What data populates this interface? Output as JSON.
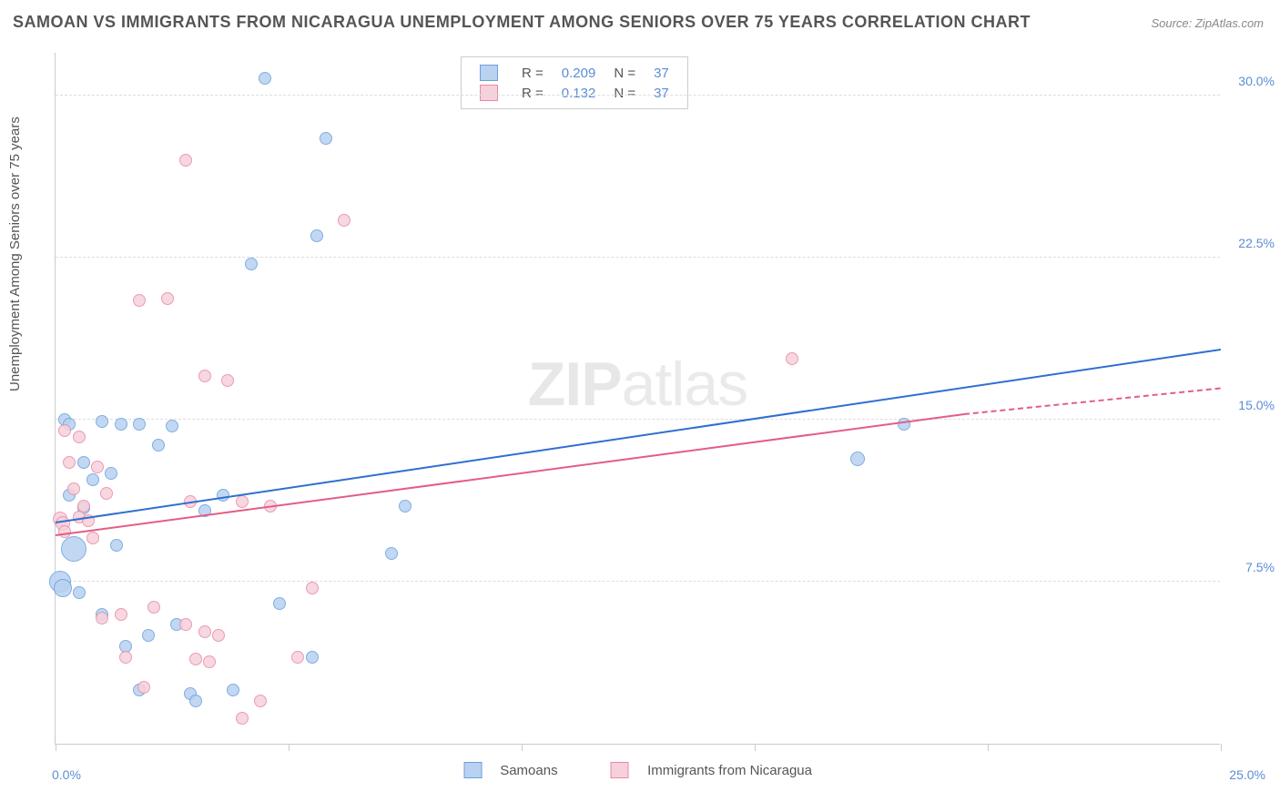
{
  "title": "SAMOAN VS IMMIGRANTS FROM NICARAGUA UNEMPLOYMENT AMONG SENIORS OVER 75 YEARS CORRELATION CHART",
  "source": "Source: ZipAtlas.com",
  "y_axis_label": "Unemployment Among Seniors over 75 years",
  "watermark_a": "ZIP",
  "watermark_b": "atlas",
  "chart": {
    "type": "scatter",
    "x_min": 0,
    "x_max": 25,
    "y_min": 0,
    "y_max": 32,
    "y_ticks": [
      7.5,
      15.0,
      22.5,
      30.0
    ],
    "y_tick_labels": [
      "7.5%",
      "15.0%",
      "22.5%",
      "30.0%"
    ],
    "x_ticks": [
      0,
      5,
      10,
      15,
      20,
      25
    ],
    "x_tick_label_left": "0.0%",
    "x_tick_label_right": "25.0%",
    "background_color": "#ffffff",
    "grid_color": "#dddddd",
    "axis_color": "#cccccc",
    "tick_label_color": "#5b8dd6"
  },
  "series": [
    {
      "name": "Samoans",
      "fill": "#b8d2f0",
      "stroke": "#6a9fe0",
      "trend_color": "#2f6fd0",
      "trend": {
        "x1": 0,
        "y1": 10.2,
        "x2": 25,
        "y2": 18.2
      },
      "r_label": "R =",
      "r_value": "0.209",
      "n_label": "N =",
      "n_value": "37",
      "points": [
        {
          "x": 0.2,
          "y": 15.0,
          "r": 7
        },
        {
          "x": 0.3,
          "y": 14.8,
          "r": 7
        },
        {
          "x": 0.3,
          "y": 11.5,
          "r": 7
        },
        {
          "x": 0.4,
          "y": 9.0,
          "r": 14
        },
        {
          "x": 0.5,
          "y": 7.0,
          "r": 7
        },
        {
          "x": 0.6,
          "y": 13.0,
          "r": 7
        },
        {
          "x": 0.8,
          "y": 12.2,
          "r": 7
        },
        {
          "x": 1.0,
          "y": 14.9,
          "r": 7
        },
        {
          "x": 1.2,
          "y": 12.5,
          "r": 7
        },
        {
          "x": 1.4,
          "y": 14.8,
          "r": 7
        },
        {
          "x": 1.8,
          "y": 14.8,
          "r": 7
        },
        {
          "x": 1.5,
          "y": 4.5,
          "r": 7
        },
        {
          "x": 1.8,
          "y": 2.5,
          "r": 7
        },
        {
          "x": 2.6,
          "y": 5.5,
          "r": 7
        },
        {
          "x": 2.9,
          "y": 2.3,
          "r": 7
        },
        {
          "x": 3.0,
          "y": 2.0,
          "r": 7
        },
        {
          "x": 3.2,
          "y": 10.8,
          "r": 7
        },
        {
          "x": 3.6,
          "y": 11.5,
          "r": 7
        },
        {
          "x": 4.2,
          "y": 22.2,
          "r": 7
        },
        {
          "x": 4.5,
          "y": 30.8,
          "r": 7
        },
        {
          "x": 4.8,
          "y": 6.5,
          "r": 7
        },
        {
          "x": 5.5,
          "y": 4.0,
          "r": 7
        },
        {
          "x": 5.6,
          "y": 23.5,
          "r": 7
        },
        {
          "x": 5.8,
          "y": 28.0,
          "r": 7
        },
        {
          "x": 7.2,
          "y": 8.8,
          "r": 7
        },
        {
          "x": 7.5,
          "y": 11.0,
          "r": 7
        },
        {
          "x": 17.2,
          "y": 13.2,
          "r": 8
        },
        {
          "x": 18.2,
          "y": 14.8,
          "r": 7
        },
        {
          "x": 1.0,
          "y": 6.0,
          "r": 7
        },
        {
          "x": 2.0,
          "y": 5.0,
          "r": 7
        },
        {
          "x": 2.2,
          "y": 13.8,
          "r": 7
        },
        {
          "x": 0.1,
          "y": 7.5,
          "r": 12
        },
        {
          "x": 0.15,
          "y": 7.2,
          "r": 10
        },
        {
          "x": 3.8,
          "y": 2.5,
          "r": 7
        },
        {
          "x": 2.5,
          "y": 14.7,
          "r": 7
        },
        {
          "x": 0.6,
          "y": 10.9,
          "r": 7
        },
        {
          "x": 1.3,
          "y": 9.2,
          "r": 7
        }
      ]
    },
    {
      "name": "Immigrants from Nicaragua",
      "fill": "#f6d1db",
      "stroke": "#e88aa5",
      "trend_color": "#e35d86",
      "trend": {
        "x1": 0,
        "y1": 9.6,
        "x2": 19.5,
        "y2": 15.2
      },
      "trend_dashed": {
        "x1": 19.5,
        "y1": 15.2,
        "x2": 25,
        "y2": 16.4
      },
      "r_label": "R =",
      "r_value": "0.132",
      "n_label": "N =",
      "n_value": "37",
      "points": [
        {
          "x": 0.2,
          "y": 14.5,
          "r": 7
        },
        {
          "x": 0.3,
          "y": 13.0,
          "r": 7
        },
        {
          "x": 0.4,
          "y": 11.8,
          "r": 7
        },
        {
          "x": 0.5,
          "y": 10.5,
          "r": 7
        },
        {
          "x": 0.6,
          "y": 11.0,
          "r": 7
        },
        {
          "x": 0.7,
          "y": 10.3,
          "r": 7
        },
        {
          "x": 0.9,
          "y": 12.8,
          "r": 7
        },
        {
          "x": 1.0,
          "y": 5.8,
          "r": 7
        },
        {
          "x": 1.4,
          "y": 6.0,
          "r": 7
        },
        {
          "x": 1.5,
          "y": 4.0,
          "r": 7
        },
        {
          "x": 1.8,
          "y": 20.5,
          "r": 7
        },
        {
          "x": 2.4,
          "y": 20.6,
          "r": 7
        },
        {
          "x": 2.8,
          "y": 27.0,
          "r": 7
        },
        {
          "x": 2.8,
          "y": 5.5,
          "r": 7
        },
        {
          "x": 3.2,
          "y": 5.2,
          "r": 7
        },
        {
          "x": 3.2,
          "y": 17.0,
          "r": 7
        },
        {
          "x": 3.3,
          "y": 3.8,
          "r": 7
        },
        {
          "x": 3.5,
          "y": 5.0,
          "r": 7
        },
        {
          "x": 3.7,
          "y": 16.8,
          "r": 7
        },
        {
          "x": 4.0,
          "y": 1.2,
          "r": 7
        },
        {
          "x": 4.4,
          "y": 2.0,
          "r": 7
        },
        {
          "x": 4.6,
          "y": 11.0,
          "r": 7
        },
        {
          "x": 5.2,
          "y": 4.0,
          "r": 7
        },
        {
          "x": 5.5,
          "y": 7.2,
          "r": 7
        },
        {
          "x": 6.2,
          "y": 24.2,
          "r": 7
        },
        {
          "x": 0.1,
          "y": 10.4,
          "r": 8
        },
        {
          "x": 0.15,
          "y": 10.2,
          "r": 8
        },
        {
          "x": 0.2,
          "y": 9.8,
          "r": 7
        },
        {
          "x": 2.1,
          "y": 6.3,
          "r": 7
        },
        {
          "x": 2.9,
          "y": 11.2,
          "r": 7
        },
        {
          "x": 15.8,
          "y": 17.8,
          "r": 7
        },
        {
          "x": 0.5,
          "y": 14.2,
          "r": 7
        },
        {
          "x": 1.1,
          "y": 11.6,
          "r": 7
        },
        {
          "x": 0.8,
          "y": 9.5,
          "r": 7
        },
        {
          "x": 4.0,
          "y": 11.2,
          "r": 7
        },
        {
          "x": 3.0,
          "y": 3.9,
          "r": 7
        },
        {
          "x": 1.9,
          "y": 2.6,
          "r": 7
        }
      ]
    }
  ],
  "legend_bottom": {
    "series1": "Samoans",
    "series2": "Immigrants from Nicaragua"
  }
}
